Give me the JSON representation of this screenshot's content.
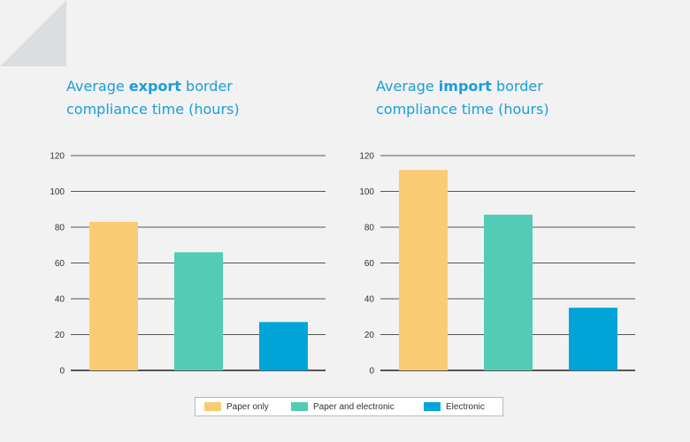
{
  "colors": {
    "paper_only": "#f9cc74",
    "paper_and_electronic": "#52ccb4",
    "electronic": "#00a4d9",
    "title": "#1a9ed9",
    "grid": "#555555"
  },
  "chart_data": [
    {
      "type": "bar",
      "title_parts": {
        "pre": "Average ",
        "bold": "export",
        "post": " border compliance time (hours)"
      },
      "categories": [
        "Paper only",
        "Paper and electronic",
        "Electronic"
      ],
      "values": [
        83,
        66,
        27
      ],
      "ylim": [
        0,
        120
      ],
      "yticks": [
        0,
        20,
        40,
        60,
        80,
        100,
        120
      ],
      "grid": true
    },
    {
      "type": "bar",
      "title_parts": {
        "pre": "Average ",
        "bold": "import",
        "post": " border compliance time (hours)"
      },
      "categories": [
        "Paper only",
        "Paper and electronic",
        "Electronic"
      ],
      "values": [
        112,
        87,
        35
      ],
      "ylim": [
        0,
        120
      ],
      "yticks": [
        0,
        20,
        40,
        60,
        80,
        100,
        120
      ],
      "grid": true
    }
  ],
  "legend": {
    "placement": "bottom-center",
    "items": [
      "Paper only",
      "Paper and electronic",
      "Electronic"
    ]
  }
}
